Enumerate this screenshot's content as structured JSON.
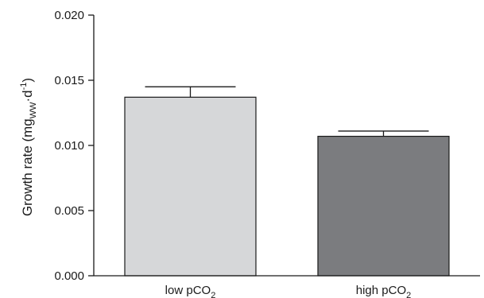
{
  "chart_data": {
    "type": "bar",
    "categories": [
      {
        "text": "low pCO",
        "sub": "2"
      },
      {
        "text": "high pCO",
        "sub": "2"
      }
    ],
    "values": [
      0.0137,
      0.0107
    ],
    "errors": [
      0.0008,
      0.0004
    ],
    "bar_colors": [
      "#d6d7d9",
      "#7b7c7f"
    ],
    "ylabel": {
      "main": "Growth rate (mg",
      "sub": "WW",
      "dot": "·d",
      "sup": "-1",
      "close": ")"
    },
    "ylim": [
      0,
      0.02
    ],
    "yticks": [
      {
        "value": 0,
        "label": "0.000"
      },
      {
        "value": 0.005,
        "label": "0.005"
      },
      {
        "value": 0.01,
        "label": "0.010"
      },
      {
        "value": 0.015,
        "label": "0.015"
      },
      {
        "value": 0.02,
        "label": "0.020"
      }
    ],
    "grid": false,
    "legend": "none"
  }
}
